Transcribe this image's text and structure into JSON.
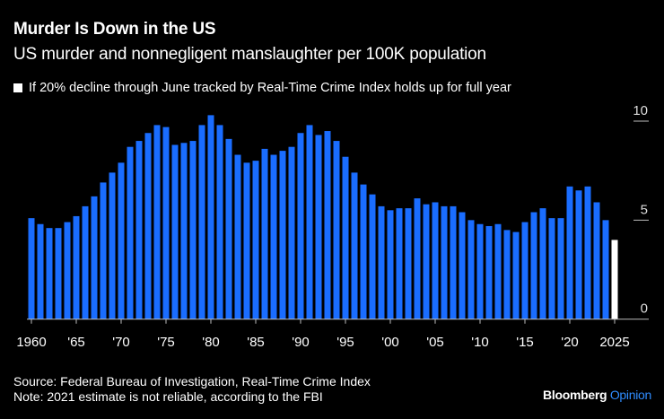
{
  "title": "Murder Is Down in the US",
  "subtitle": "US murder and nonnegligent manslaughter per 100K population",
  "legend_note": "If 20% decline through June tracked by Real-Time Crime Index holds up for full year",
  "footer": {
    "source": "Source: Federal Bureau of Investigation, Real-Time Crime Index",
    "note": "Note: 2021 estimate is not reliable, according to the FBI"
  },
  "logo": {
    "brand": "Bloomberg",
    "suffix": "Opinion"
  },
  "colors": {
    "bar": "#1a6dff",
    "projection": "#ffffff",
    "background": "#000000"
  },
  "chart_data": {
    "type": "bar",
    "x": [
      1960,
      1961,
      1962,
      1963,
      1964,
      1965,
      1966,
      1967,
      1968,
      1969,
      1970,
      1971,
      1972,
      1973,
      1974,
      1975,
      1976,
      1977,
      1978,
      1979,
      1980,
      1981,
      1982,
      1983,
      1984,
      1985,
      1986,
      1987,
      1988,
      1989,
      1990,
      1991,
      1992,
      1993,
      1994,
      1995,
      1996,
      1997,
      1998,
      1999,
      2000,
      2001,
      2002,
      2003,
      2004,
      2005,
      2006,
      2007,
      2008,
      2009,
      2010,
      2011,
      2012,
      2013,
      2014,
      2015,
      2016,
      2017,
      2018,
      2019,
      2020,
      2021,
      2022,
      2023,
      2024,
      2025
    ],
    "values": [
      5.1,
      4.8,
      4.6,
      4.6,
      4.9,
      5.2,
      5.7,
      6.2,
      6.9,
      7.4,
      7.9,
      8.7,
      9.0,
      9.4,
      9.8,
      9.7,
      8.8,
      8.9,
      9.0,
      9.8,
      10.3,
      9.8,
      9.1,
      8.3,
      7.9,
      8.0,
      8.6,
      8.3,
      8.5,
      8.7,
      9.4,
      9.8,
      9.3,
      9.5,
      9.0,
      8.2,
      7.4,
      6.8,
      6.3,
      5.7,
      5.5,
      5.6,
      5.6,
      6.1,
      5.8,
      5.9,
      5.7,
      5.7,
      5.4,
      5.0,
      4.8,
      4.7,
      4.8,
      4.5,
      4.4,
      4.9,
      5.4,
      5.6,
      5.1,
      5.1,
      6.7,
      6.5,
      6.7,
      5.9,
      5.0,
      4.0
    ],
    "projected_years": [
      2025
    ],
    "x_tick_labels": [
      {
        "x": 1960,
        "label": "1960"
      },
      {
        "x": 1965,
        "label": "'65"
      },
      {
        "x": 1970,
        "label": "'70"
      },
      {
        "x": 1975,
        "label": "'75"
      },
      {
        "x": 1980,
        "label": "'80"
      },
      {
        "x": 1985,
        "label": "'85"
      },
      {
        "x": 1990,
        "label": "'90"
      },
      {
        "x": 1995,
        "label": "'95"
      },
      {
        "x": 2000,
        "label": "'00"
      },
      {
        "x": 2005,
        "label": "'05"
      },
      {
        "x": 2010,
        "label": "'10"
      },
      {
        "x": 2015,
        "label": "'15"
      },
      {
        "x": 2020,
        "label": "'20"
      },
      {
        "x": 2025,
        "label": "2025"
      }
    ],
    "y_ticks": [
      0,
      5,
      10
    ],
    "ylim": [
      0,
      10
    ],
    "y_axis_side": "right",
    "grid": true
  }
}
